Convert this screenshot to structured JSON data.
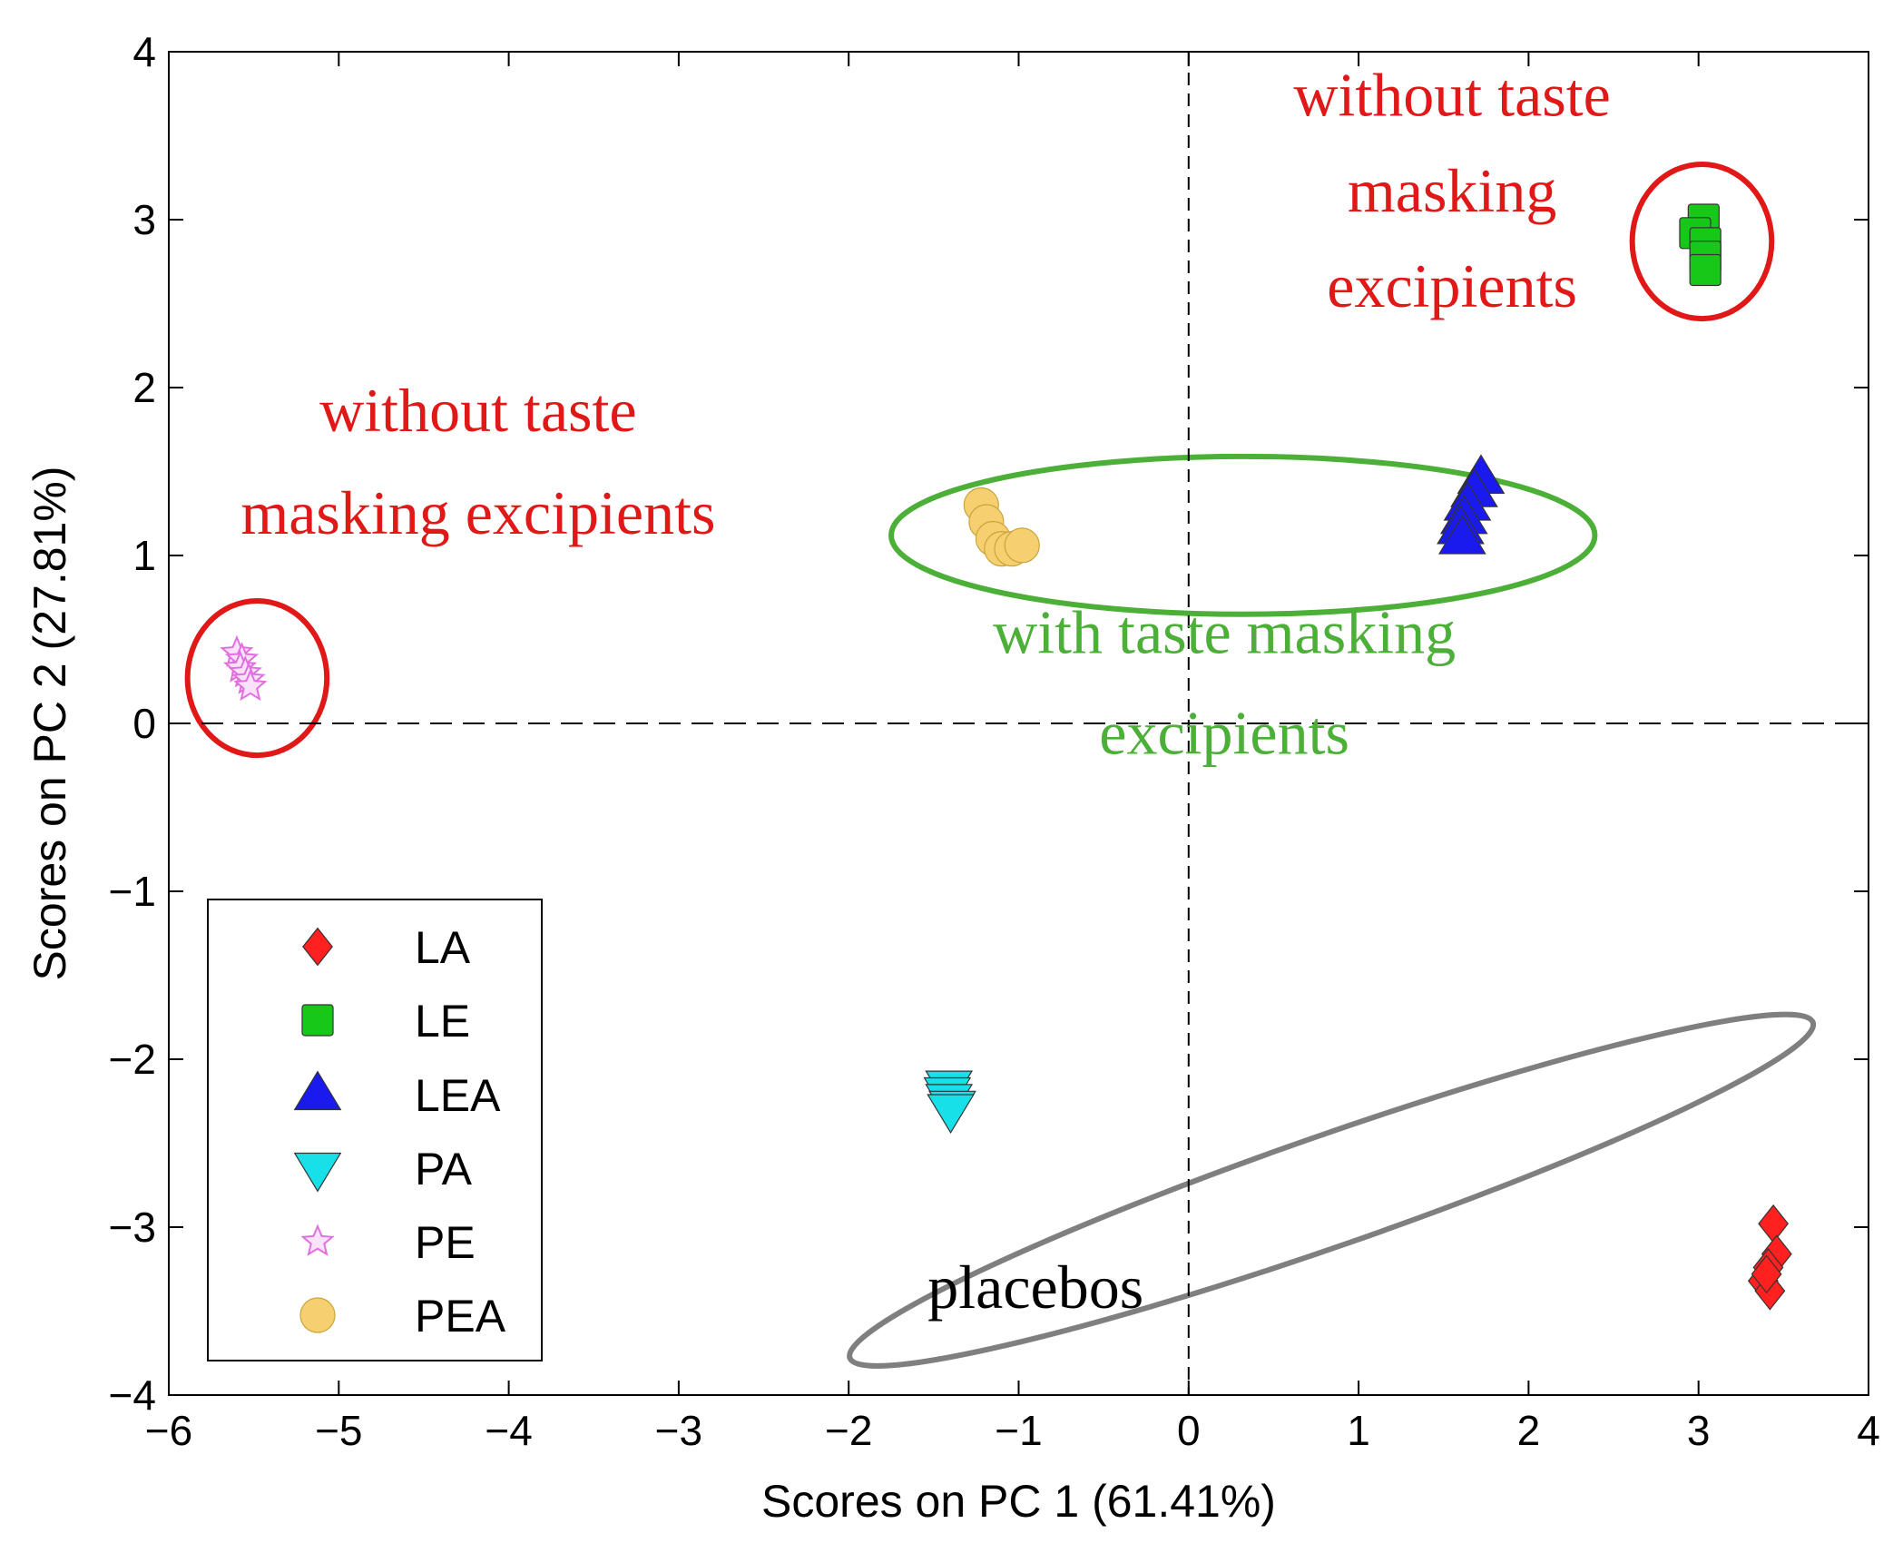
{
  "chart_data": {
    "type": "scatter",
    "title": "",
    "xlabel": "Scores on PC 1 (61.41%)",
    "ylabel": "Scores on PC 2 (27.81%)",
    "xlim": [
      -6,
      4
    ],
    "ylim": [
      -4,
      4
    ],
    "xticks": [
      -6,
      -5,
      -4,
      -3,
      -2,
      -1,
      0,
      1,
      2,
      3,
      4
    ],
    "yticks": [
      -4,
      -3,
      -2,
      -1,
      0,
      1,
      2,
      3,
      4
    ],
    "reference_lines": {
      "x": 0,
      "y": 0,
      "style": "dashed"
    },
    "legend_position": "bottom-left",
    "series": [
      {
        "name": "LA",
        "marker": "diamond",
        "color": "#ff2020",
        "points": [
          [
            3.44,
            -2.98
          ],
          [
            3.46,
            -3.16
          ],
          [
            3.41,
            -3.24
          ],
          [
            3.38,
            -3.32
          ],
          [
            3.42,
            -3.38
          ],
          [
            3.4,
            -3.28
          ]
        ]
      },
      {
        "name": "LE",
        "marker": "square",
        "color": "#18c818",
        "points": [
          [
            3.03,
            3.0
          ],
          [
            2.98,
            2.92
          ],
          [
            3.04,
            2.86
          ],
          [
            3.04,
            2.78
          ],
          [
            3.04,
            2.7
          ]
        ]
      },
      {
        "name": "LEA",
        "marker": "triangle-up",
        "color": "#1a1aee",
        "points": [
          [
            1.72,
            1.46
          ],
          [
            1.68,
            1.38
          ],
          [
            1.64,
            1.3
          ],
          [
            1.62,
            1.22
          ],
          [
            1.6,
            1.16
          ],
          [
            1.61,
            1.1
          ]
        ]
      },
      {
        "name": "PA",
        "marker": "triangle-down",
        "color": "#18e0e8",
        "points": [
          [
            -1.41,
            -2.16
          ],
          [
            -1.42,
            -2.2
          ],
          [
            -1.41,
            -2.24
          ],
          [
            -1.39,
            -2.28
          ],
          [
            -1.4,
            -2.3
          ]
        ]
      },
      {
        "name": "PE",
        "marker": "star",
        "color": "#e070e0",
        "points": [
          [
            -5.6,
            0.42
          ],
          [
            -5.57,
            0.38
          ],
          [
            -5.58,
            0.33
          ],
          [
            -5.55,
            0.3
          ],
          [
            -5.53,
            0.26
          ],
          [
            -5.52,
            0.22
          ]
        ]
      },
      {
        "name": "PEA",
        "marker": "circle",
        "color": "#f6d070",
        "points": [
          [
            -1.22,
            1.3
          ],
          [
            -1.19,
            1.2
          ],
          [
            -1.15,
            1.1
          ],
          [
            -1.1,
            1.04
          ],
          [
            -1.04,
            1.04
          ],
          [
            -0.98,
            1.06
          ]
        ]
      }
    ],
    "ellipses": [
      {
        "name": "ellipse-le",
        "color": "#e01818",
        "cx": 3.02,
        "cy": 2.87,
        "rx": 0.41,
        "ry": 0.46,
        "rotation": 0
      },
      {
        "name": "ellipse-pe",
        "color": "#e01818",
        "cx": -5.48,
        "cy": 0.27,
        "rx": 0.41,
        "ry": 0.46,
        "rotation": 0
      },
      {
        "name": "ellipse-taste-masked",
        "color": "#4caf38",
        "cx": 0.32,
        "cy": 1.12,
        "rx": 2.07,
        "ry": 0.47,
        "rotation": 0
      },
      {
        "name": "ellipse-placebos",
        "color": "#7f7f7f",
        "cx": 0.84,
        "cy": -2.78,
        "rx": 3.0,
        "ry": 0.33,
        "rotation": -19.2
      }
    ],
    "annotations": [
      {
        "name": "annotation-le",
        "color": "#e01818",
        "x": 1.55,
        "lines": [
          {
            "text": "without taste",
            "y": 3.62
          },
          {
            "text": "masking",
            "y": 3.05
          },
          {
            "text": "excipients",
            "y": 2.48
          }
        ]
      },
      {
        "name": "annotation-pe",
        "color": "#e01818",
        "x": -4.18,
        "lines": [
          {
            "text": "without taste",
            "y": 1.74
          },
          {
            "text": "masking excipients",
            "y": 1.13
          }
        ]
      },
      {
        "name": "annotation-taste-masked",
        "color": "#4caf38",
        "x": 0.21,
        "lines": [
          {
            "text": "with taste masking",
            "y": 0.42
          },
          {
            "text": "excipients",
            "y": -0.18
          }
        ]
      },
      {
        "name": "annotation-placebos",
        "color": "#000000",
        "x": -0.9,
        "lines": [
          {
            "text": "placebos",
            "y": -3.48
          }
        ]
      }
    ]
  }
}
